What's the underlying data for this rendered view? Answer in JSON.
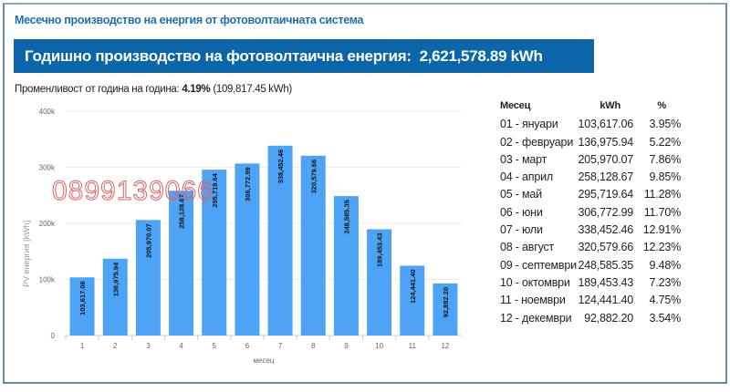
{
  "title": "Месечно производство на енергия от фотоволтаичната система",
  "banner": {
    "label": "Годишно производство на фотоволтаична енергия:",
    "value": "2,621,578.89 kWh"
  },
  "variability": {
    "label": "Променливост от година на година:",
    "percent": "4.19%",
    "kwh": "(109,817.45 kWh)"
  },
  "watermark": "0899139066",
  "chart_data": {
    "type": "bar",
    "categories": [
      "1",
      "2",
      "3",
      "4",
      "5",
      "6",
      "7",
      "8",
      "9",
      "10",
      "11",
      "12"
    ],
    "values": [
      103617.06,
      136975.94,
      205970.07,
      258128.67,
      295719.64,
      306772.99,
      338452.46,
      320579.66,
      248585.35,
      189453.43,
      124441.4,
      92882.2
    ],
    "data_labels": [
      "103,617.06",
      "136,975.94",
      "205,970.07",
      "258,128.67",
      "295,719.64",
      "306,772.99",
      "338,452.46",
      "320,579.66",
      "248,585.35",
      "189,453.43",
      "124,441.40",
      "92,882.20"
    ],
    "xlabel": "месец",
    "ylabel": "PV енергия [kWh]",
    "ylim": [
      0,
      400000
    ],
    "yticks": [
      "0",
      "100k",
      "200k",
      "300k",
      "400k"
    ],
    "grid": true,
    "bar_color": "#4da3f5"
  },
  "table": {
    "headers": [
      "Месец",
      "kWh",
      "%"
    ],
    "rows": [
      [
        "01 - януари",
        "103,617.06",
        "3.95%"
      ],
      [
        "02 - февруари",
        "136,975.94",
        "5.22%"
      ],
      [
        "03 - март",
        "205,970.07",
        "7.86%"
      ],
      [
        "04 - април",
        "258,128.67",
        "9.85%"
      ],
      [
        "05 - май",
        "295,719.64",
        "11.28%"
      ],
      [
        "06 - юни",
        "306,772.99",
        "11.70%"
      ],
      [
        "07 - юли",
        "338,452.46",
        "12.91%"
      ],
      [
        "08 - август",
        "320,579.66",
        "12.23%"
      ],
      [
        "09 - септември",
        "248,585.35",
        "9.48%"
      ],
      [
        "10 - октомври",
        "189,453.43",
        "7.23%"
      ],
      [
        "11 - ноември",
        "124,441.40",
        "4.75%"
      ],
      [
        "12 - декември",
        "92,882.20",
        "3.54%"
      ]
    ]
  }
}
